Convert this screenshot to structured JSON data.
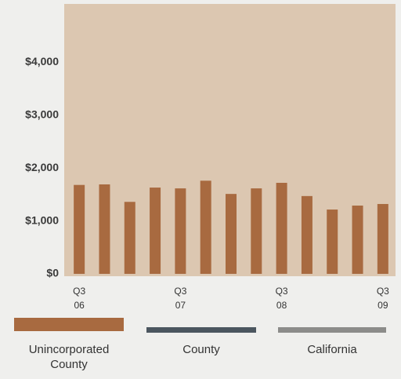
{
  "chart_data": {
    "type": "bar",
    "categories": [
      "Q3\n06",
      null,
      null,
      null,
      "Q3\n07",
      null,
      null,
      null,
      "Q3\n08",
      null,
      null,
      null,
      "Q3\n09"
    ],
    "series": [
      {
        "name": "Unincorporated County",
        "color": "#a86a40",
        "values": [
          1680,
          1690,
          1360,
          1630,
          1615,
          1760,
          1510,
          1615,
          1720,
          1470,
          1215,
          1290,
          1320
        ]
      },
      {
        "name": "County",
        "color": "#4b565f"
      },
      {
        "name": "California",
        "color": "#8c8c8a"
      }
    ],
    "ylim": [
      0,
      5100
    ],
    "yticks": [
      {
        "value": 0,
        "label": "$0"
      },
      {
        "value": 1000,
        "label": "$1,000"
      },
      {
        "value": 2000,
        "label": "$2,000"
      },
      {
        "value": 3000,
        "label": "$3,000"
      },
      {
        "value": 4000,
        "label": "$4,000"
      }
    ],
    "grid": false
  }
}
